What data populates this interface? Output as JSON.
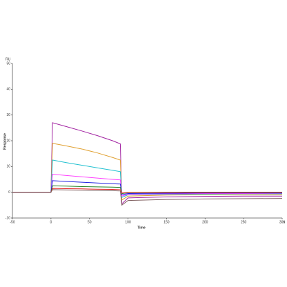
{
  "chart_data": {
    "type": "line",
    "x_label": "Time",
    "x_unit": "s",
    "y_label": "Response",
    "y_unit": "RU",
    "x": [
      -50,
      0,
      2,
      20,
      40,
      60,
      80,
      90,
      92,
      100,
      150,
      200,
      250,
      300
    ],
    "series": [
      {
        "color": "#a020a0",
        "values": [
          0,
          0,
          27,
          25.5,
          23.8,
          22,
          20,
          18.8,
          -4.5,
          -2.2,
          -1.8,
          -1.6,
          -1.5,
          -1.5
        ]
      },
      {
        "color": "#e0a030",
        "values": [
          0,
          0,
          19,
          18,
          16.8,
          15.3,
          13.5,
          12.5,
          -3,
          -1.5,
          -1.1,
          -1,
          -1,
          -0.9
        ]
      },
      {
        "color": "#20c0d0",
        "values": [
          0,
          0,
          12.5,
          11.5,
          10.5,
          9.5,
          8.5,
          8,
          -2,
          -1,
          -0.8,
          -0.7,
          -0.6,
          -0.6
        ]
      },
      {
        "color": "#ff40ff",
        "values": [
          0,
          0,
          7,
          6.5,
          6,
          5.5,
          5,
          4.8,
          -1.5,
          -0.8,
          -0.6,
          -0.5,
          -0.5,
          -0.4
        ]
      },
      {
        "color": "#2020e0",
        "values": [
          0,
          0,
          4.5,
          4.2,
          3.9,
          3.6,
          3.3,
          3.2,
          -1,
          -0.5,
          -0.4,
          -0.3,
          -0.3,
          -0.3
        ]
      },
      {
        "color": "#208020",
        "values": [
          0,
          0,
          2.5,
          2.4,
          2.2,
          2.1,
          2,
          1.9,
          -0.5,
          -0.2,
          -0.1,
          -0.1,
          -0.1,
          -0.1
        ]
      },
      {
        "color": "#e02020",
        "values": [
          0,
          0,
          1.5,
          1.4,
          1.3,
          1.2,
          1.1,
          1,
          -0.3,
          -0.1,
          0,
          0,
          0,
          0
        ]
      },
      {
        "color": "#806060",
        "values": [
          0,
          0,
          1,
          0.9,
          0.8,
          0.7,
          0.6,
          0.5,
          -5,
          -3.2,
          -2.8,
          -2.6,
          -2.5,
          -2.4
        ]
      }
    ],
    "xlim": [
      -50,
      300
    ],
    "xticks": [
      -50,
      0,
      50,
      100,
      150,
      200,
      250,
      300
    ],
    "ylim": [
      -10,
      50
    ],
    "yticks": [
      -10,
      0,
      10,
      20,
      30,
      40,
      50
    ]
  }
}
